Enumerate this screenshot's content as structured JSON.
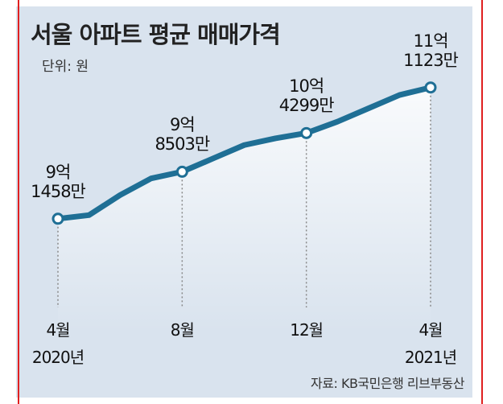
{
  "chart_data": {
    "type": "line",
    "title": "서울 아파트 평균 매매가격",
    "unit_label": "단위: 원",
    "source": "자료: KB국민은행 리브부동산",
    "x": [
      "2020-04",
      "2020-05",
      "2020-06",
      "2020-07",
      "2020-08",
      "2020-09",
      "2020-10",
      "2020-11",
      "2020-12",
      "2021-01",
      "2021-02",
      "2021-03",
      "2021-04"
    ],
    "values": [
      914580000,
      920000000,
      950000000,
      975000000,
      985030000,
      1005000000,
      1025000000,
      1035000000,
      1042990000,
      1060000000,
      1080000000,
      1100000000,
      1111230000
    ],
    "ylim": [
      760000000,
      1170000000
    ],
    "x_ticks": [
      {
        "x": "2020-04",
        "line1": "4월",
        "line2": "2020년"
      },
      {
        "x": "2020-08",
        "line1": "8월",
        "line2": ""
      },
      {
        "x": "2020-12",
        "line1": "12월",
        "line2": ""
      },
      {
        "x": "2021-04",
        "line1": "4월",
        "line2": "2021년"
      }
    ],
    "annotations": [
      {
        "x": "2020-04",
        "value": 914580000,
        "line1": "9억",
        "line2": "1458만"
      },
      {
        "x": "2020-08",
        "value": 985030000,
        "line1": "9억",
        "line2": "8503만"
      },
      {
        "x": "2020-12",
        "value": 1042990000,
        "line1": "10억",
        "line2": "4299만"
      },
      {
        "x": "2021-04",
        "value": 1111230000,
        "line1": "11억",
        "line2": "1123만"
      }
    ],
    "grid": false,
    "colors": {
      "line": "#1f6f95",
      "background": "#d9e3ee",
      "annotation_line": "#888888"
    }
  }
}
